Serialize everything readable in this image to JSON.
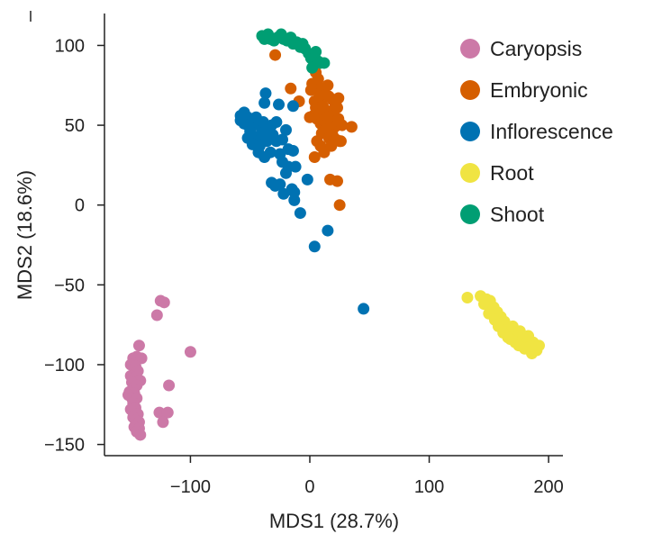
{
  "chart_data": {
    "type": "scatter",
    "title": "",
    "xlabel": "MDS1 (28.7%)",
    "ylabel": "MDS2 (18.6%)",
    "xlim": [
      -172,
      212
    ],
    "ylim": [
      -157,
      120
    ],
    "xticks": [
      -100,
      0,
      100,
      200
    ],
    "yticks": [
      100,
      50,
      0,
      -50,
      -100,
      -150
    ],
    "xtick_labels": [
      "−100",
      "0",
      "100",
      "200"
    ],
    "ytick_labels": [
      "100",
      "50",
      "0",
      "−50",
      "−100",
      "−150"
    ],
    "grid": false,
    "legend_position": "top-right",
    "series": [
      {
        "name": "Caryopsis",
        "color": "#cc79a7",
        "points": [
          [
            -125,
            -60
          ],
          [
            -122,
            -61
          ],
          [
            -128,
            -69
          ],
          [
            -143,
            -88
          ],
          [
            -145,
            -95
          ],
          [
            -148,
            -96
          ],
          [
            -141,
            -96
          ],
          [
            -100,
            -92
          ],
          [
            -150,
            -100
          ],
          [
            -146,
            -101
          ],
          [
            -144,
            -104
          ],
          [
            -150,
            -107
          ],
          [
            -146,
            -108
          ],
          [
            -142,
            -110
          ],
          [
            -149,
            -111
          ],
          [
            -145,
            -113
          ],
          [
            -118,
            -113
          ],
          [
            -148,
            -115
          ],
          [
            -151,
            -117
          ],
          [
            -147,
            -118
          ],
          [
            -152,
            -119
          ],
          [
            -149,
            -121
          ],
          [
            -145,
            -121
          ],
          [
            -148,
            -124
          ],
          [
            -146,
            -127
          ],
          [
            -150,
            -128
          ],
          [
            -144,
            -131
          ],
          [
            -126,
            -130
          ],
          [
            -119,
            -130
          ],
          [
            -148,
            -133
          ],
          [
            -146,
            -135
          ],
          [
            -143,
            -136
          ],
          [
            -123,
            -136
          ],
          [
            -147,
            -139
          ],
          [
            -143,
            -140
          ],
          [
            -145,
            -142
          ],
          [
            -142,
            -144
          ]
        ]
      },
      {
        "name": "Embryonic",
        "color": "#d55e00",
        "points": [
          [
            -29,
            94
          ],
          [
            -16,
            73
          ],
          [
            2,
            76
          ],
          [
            5,
            83
          ],
          [
            7,
            79
          ],
          [
            9,
            73
          ],
          [
            15,
            75
          ],
          [
            -9,
            65
          ],
          [
            1,
            72
          ],
          [
            4,
            65
          ],
          [
            8,
            68
          ],
          [
            13,
            69
          ],
          [
            16,
            68
          ],
          [
            19,
            66
          ],
          [
            22,
            65
          ],
          [
            24,
            67
          ],
          [
            5,
            61
          ],
          [
            8,
            58
          ],
          [
            11,
            62
          ],
          [
            14,
            59
          ],
          [
            17,
            57
          ],
          [
            20,
            60
          ],
          [
            23,
            61
          ],
          [
            0,
            55
          ],
          [
            3,
            56
          ],
          [
            6,
            54
          ],
          [
            9,
            51
          ],
          [
            12,
            53
          ],
          [
            15,
            55
          ],
          [
            18,
            52
          ],
          [
            21,
            49
          ],
          [
            24,
            54
          ],
          [
            27,
            50
          ],
          [
            10,
            45
          ],
          [
            13,
            47
          ],
          [
            16,
            42
          ],
          [
            19,
            44
          ],
          [
            22,
            41
          ],
          [
            35,
            49
          ],
          [
            6,
            40
          ],
          [
            9,
            37
          ],
          [
            12,
            33
          ],
          [
            4,
            30
          ],
          [
            25,
            40
          ],
          [
            18,
            37
          ],
          [
            26,
            40
          ],
          [
            23,
            15
          ],
          [
            17,
            16
          ],
          [
            25,
            0
          ]
        ]
      },
      {
        "name": "Inflorescence",
        "color": "#0072b2",
        "points": [
          [
            -37,
            70
          ],
          [
            -38,
            64
          ],
          [
            -26,
            63
          ],
          [
            -14,
            62
          ],
          [
            -58,
            56
          ],
          [
            -55,
            58
          ],
          [
            -52,
            55
          ],
          [
            -55,
            51
          ],
          [
            -58,
            53
          ],
          [
            -52,
            50
          ],
          [
            -48,
            52
          ],
          [
            -45,
            55
          ],
          [
            -43,
            50
          ],
          [
            -39,
            52
          ],
          [
            -36,
            48
          ],
          [
            -32,
            50
          ],
          [
            -28,
            52
          ],
          [
            -20,
            47
          ],
          [
            -50,
            46
          ],
          [
            -44,
            43
          ],
          [
            -40,
            45
          ],
          [
            -31,
            44
          ],
          [
            -23,
            41
          ],
          [
            -46,
            40
          ],
          [
            -52,
            42
          ],
          [
            -48,
            38
          ],
          [
            -42,
            37
          ],
          [
            -36,
            40
          ],
          [
            -28,
            40
          ],
          [
            -18,
            35
          ],
          [
            -33,
            33
          ],
          [
            -25,
            32
          ],
          [
            -14,
            34
          ],
          [
            -43,
            33
          ],
          [
            -38,
            30
          ],
          [
            -23,
            27
          ],
          [
            -18,
            24
          ],
          [
            -12,
            24
          ],
          [
            -20,
            20
          ],
          [
            -32,
            14
          ],
          [
            -29,
            12
          ],
          [
            -25,
            13
          ],
          [
            -15,
            10
          ],
          [
            -13,
            8
          ],
          [
            -22,
            7
          ],
          [
            -2,
            16
          ],
          [
            -13,
            3
          ],
          [
            -8,
            -5
          ],
          [
            15,
            -16
          ],
          [
            4,
            -26
          ],
          [
            45,
            -65
          ]
        ]
      },
      {
        "name": "Root",
        "color": "#f0e442",
        "points": [
          [
            132,
            -58
          ],
          [
            143,
            -57
          ],
          [
            148,
            -59
          ],
          [
            151,
            -60
          ],
          [
            146,
            -62
          ],
          [
            154,
            -64
          ],
          [
            157,
            -67
          ],
          [
            150,
            -68
          ],
          [
            160,
            -70
          ],
          [
            155,
            -72
          ],
          [
            163,
            -73
          ],
          [
            158,
            -76
          ],
          [
            166,
            -78
          ],
          [
            170,
            -80
          ],
          [
            162,
            -80
          ],
          [
            174,
            -82
          ],
          [
            168,
            -84
          ],
          [
            172,
            -86
          ],
          [
            178,
            -85
          ],
          [
            182,
            -84
          ],
          [
            175,
            -88
          ],
          [
            184,
            -89
          ],
          [
            187,
            -86
          ],
          [
            180,
            -90
          ],
          [
            189,
            -90
          ],
          [
            192,
            -88
          ],
          [
            186,
            -93
          ],
          [
            190,
            -91
          ],
          [
            170,
            -76
          ],
          [
            176,
            -79
          ],
          [
            166,
            -83
          ],
          [
            183,
            -82
          ]
        ]
      },
      {
        "name": "Shoot",
        "color": "#009e73",
        "points": [
          [
            -40,
            106
          ],
          [
            -38,
            104
          ],
          [
            -35,
            107
          ],
          [
            -33,
            104
          ],
          [
            -30,
            103
          ],
          [
            -27,
            105
          ],
          [
            -24,
            107
          ],
          [
            -22,
            104
          ],
          [
            -19,
            103
          ],
          [
            -16,
            105
          ],
          [
            -14,
            101
          ],
          [
            -11,
            102
          ],
          [
            -8,
            99
          ],
          [
            -6,
            101
          ],
          [
            -4,
            98
          ],
          [
            -1,
            95
          ],
          [
            1,
            92
          ],
          [
            4,
            93
          ],
          [
            7,
            90
          ],
          [
            5,
            96
          ],
          [
            9,
            89
          ],
          [
            12,
            89
          ],
          [
            2,
            86
          ]
        ]
      }
    ]
  }
}
